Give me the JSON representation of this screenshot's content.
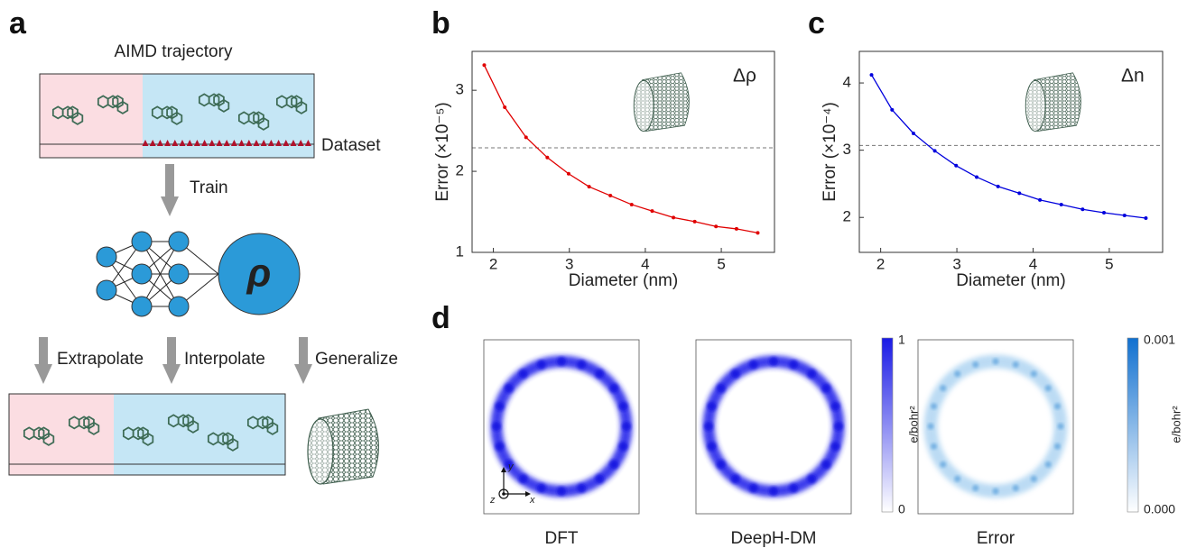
{
  "panel_labels": [
    "a",
    "b",
    "c",
    "d"
  ],
  "panel_a": {
    "title": "AIMD trajectory",
    "dataset": "Dataset",
    "train": "Train",
    "output": "ρ",
    "extrapolate": "Extrapolate",
    "interpolate": "Interpolate",
    "generalize": "Generalize"
  },
  "chart_data": [
    {
      "type": "line",
      "xlabel": "Diameter (nm)",
      "ylabel": "Error (×10⁻⁵)",
      "annotation": "Δρ",
      "x": [
        1.88,
        2.15,
        2.43,
        2.71,
        2.99,
        3.26,
        3.54,
        3.82,
        4.09,
        4.37,
        4.65,
        4.93,
        5.2,
        5.48
      ],
      "series": [
        {
          "color": "#e00000",
          "values": [
            3.31,
            2.79,
            2.42,
            2.17,
            1.97,
            1.81,
            1.7,
            1.59,
            1.51,
            1.43,
            1.38,
            1.32,
            1.29,
            1.24
          ]
        }
      ],
      "hline": 2.29,
      "xlim": [
        1.72,
        5.7
      ],
      "ylim": [
        1,
        3.48
      ],
      "xticks": [
        2,
        3,
        4,
        5
      ],
      "yticks": [
        1,
        2,
        3
      ]
    },
    {
      "type": "line",
      "xlabel": "Diameter (nm)",
      "ylabel": "Error (×10⁻⁴)",
      "annotation": "Δn",
      "x": [
        1.88,
        2.15,
        2.43,
        2.71,
        2.99,
        3.26,
        3.54,
        3.82,
        4.09,
        4.37,
        4.65,
        4.93,
        5.2,
        5.48
      ],
      "series": [
        {
          "color": "#0000dd",
          "values": [
            4.12,
            3.6,
            3.25,
            2.99,
            2.77,
            2.6,
            2.46,
            2.36,
            2.26,
            2.19,
            2.12,
            2.07,
            2.03,
            1.99
          ]
        }
      ],
      "hline": 3.07,
      "xlim": [
        1.72,
        5.7
      ],
      "ylim": [
        1.48,
        4.47
      ],
      "xticks": [
        2,
        3,
        4,
        5
      ],
      "yticks": [
        2,
        3,
        4
      ]
    }
  ],
  "panel_d": {
    "titles": [
      "DFT",
      "DeepH-DM",
      "Error"
    ],
    "axes": [
      "x",
      "y",
      "z"
    ],
    "colorbars": [
      {
        "max": "1",
        "min": "0",
        "unit": "e/bohr²"
      },
      {
        "max": "0.001",
        "min": "0.000",
        "unit": "e/bohr²"
      }
    ]
  }
}
